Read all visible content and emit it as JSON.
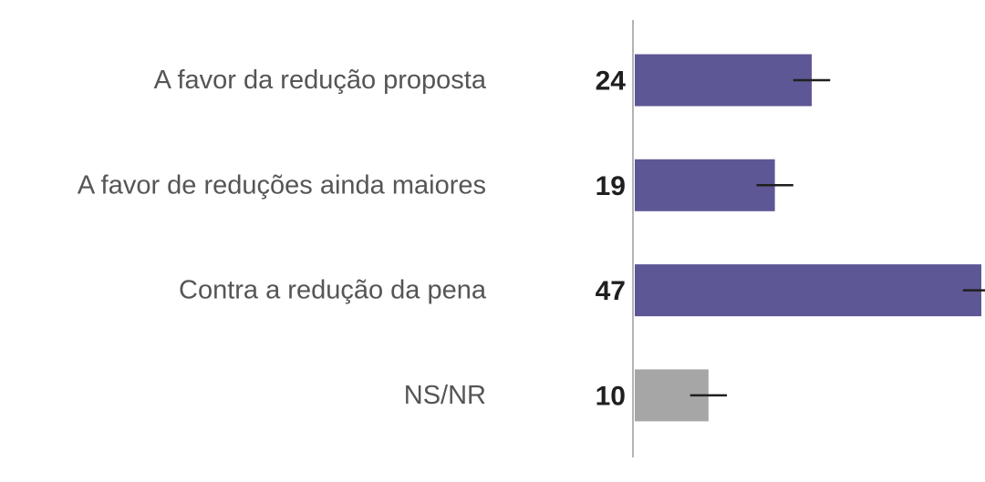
{
  "chart_data": {
    "type": "bar",
    "orientation": "horizontal",
    "title": "",
    "xlabel": "",
    "ylabel": "",
    "xlim": [
      0,
      47
    ],
    "grid": false,
    "categories": [
      "A favor da redução proposta",
      "A favor de reduções ainda maiores",
      "Contra a redução da pena",
      "NS/NR"
    ],
    "values": [
      24,
      19,
      47,
      10
    ],
    "value_labels": [
      "24",
      "19",
      "47",
      "10"
    ],
    "error_margin": 2.5,
    "colors": [
      "#5e5796",
      "#5e5796",
      "#5e5796",
      "#a6a6a6"
    ],
    "axis_color": "#b4b4b4",
    "error_bar_color": "#1f1f1f"
  }
}
